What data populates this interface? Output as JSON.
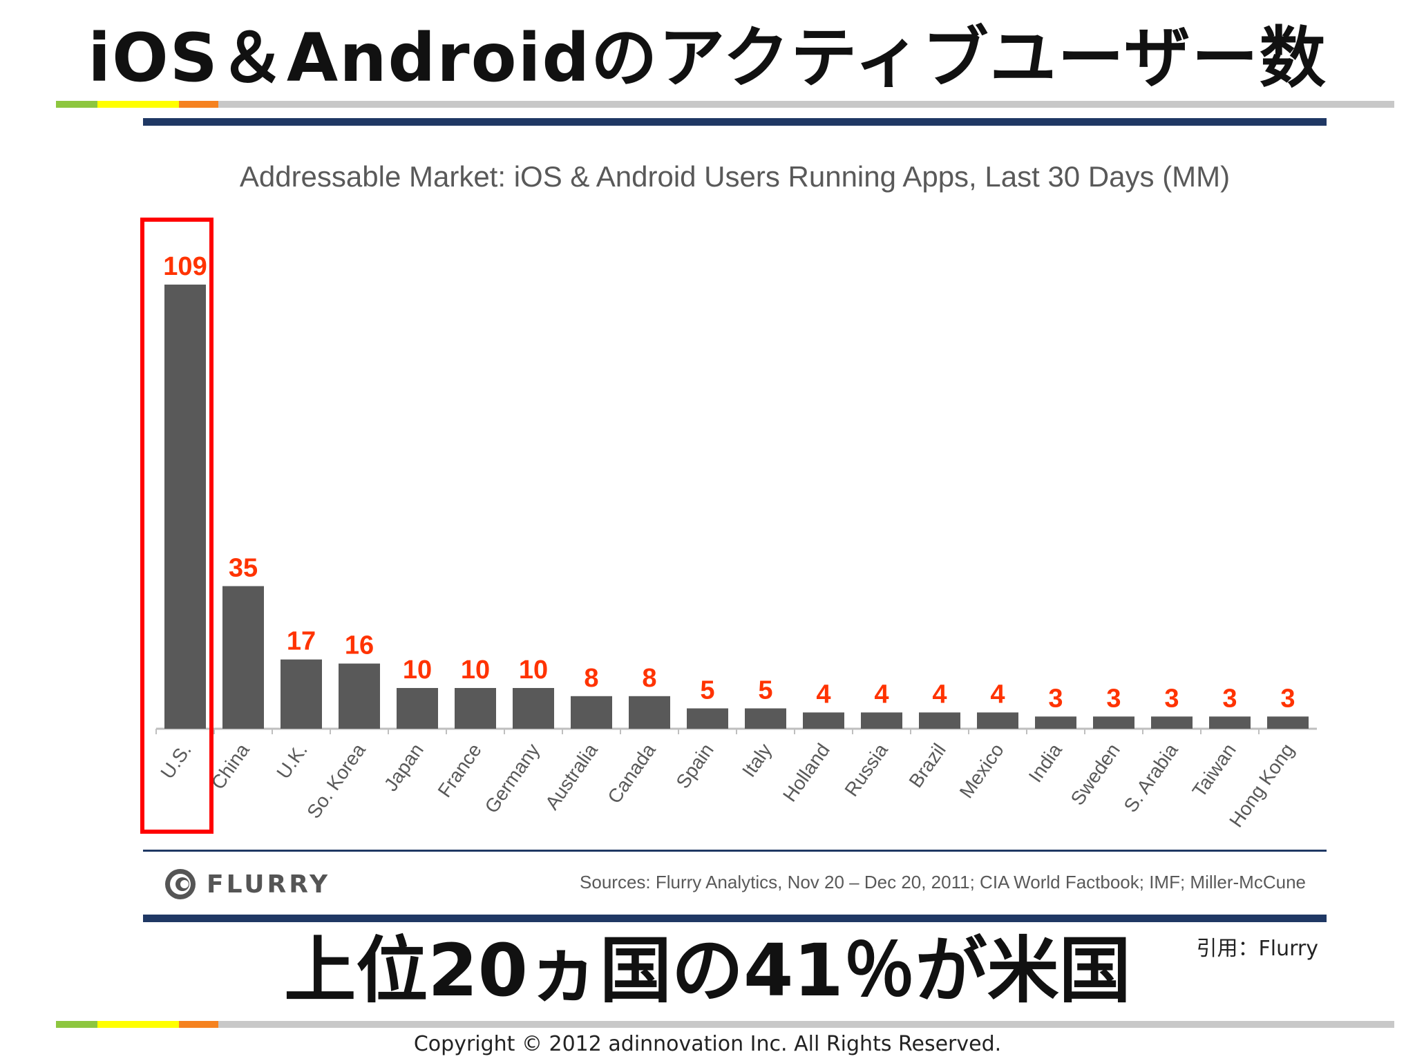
{
  "slide": {
    "title": "iOS＆Androidのアクティブユーザー数",
    "headline": "上位20ヵ国の41％が米国",
    "citation": "引用：Flurry",
    "copyright": "Copyright © 2012 adinnovation Inc. All Rights Reserved."
  },
  "figure": {
    "logo_text": "FLURRY",
    "sources": "Sources: Flurry Analytics, Nov 20 – Dec 20, 2011; CIA World Factbook; IMF; Miller-McCune"
  },
  "colors": {
    "bar": "#595959",
    "value_label": "#ff3300",
    "highlight": "#ff0000",
    "rule": "#1f3864",
    "deco": [
      "#8dc63f",
      "#ffff00",
      "#f58220",
      "#c8c8c8"
    ]
  },
  "chart_data": {
    "type": "bar",
    "title": "Addressable Market: iOS & Android Users Running Apps, Last 30 Days (MM)",
    "categories": [
      "U.S.",
      "China",
      "U.K.",
      "So. Korea",
      "Japan",
      "France",
      "Germany",
      "Australia",
      "Canada",
      "Spain",
      "Italy",
      "Holland",
      "Russia",
      "Brazil",
      "Mexico",
      "India",
      "Sweden",
      "S. Arabia",
      "Taiwan",
      "Hong Kong"
    ],
    "values": [
      109,
      35,
      17,
      16,
      10,
      10,
      10,
      8,
      8,
      5,
      5,
      4,
      4,
      4,
      4,
      3,
      3,
      3,
      3,
      3
    ],
    "highlighted_category": "U.S.",
    "data_labels": true,
    "grid": false,
    "legend": "none",
    "ylim": [
      0,
      109
    ]
  }
}
